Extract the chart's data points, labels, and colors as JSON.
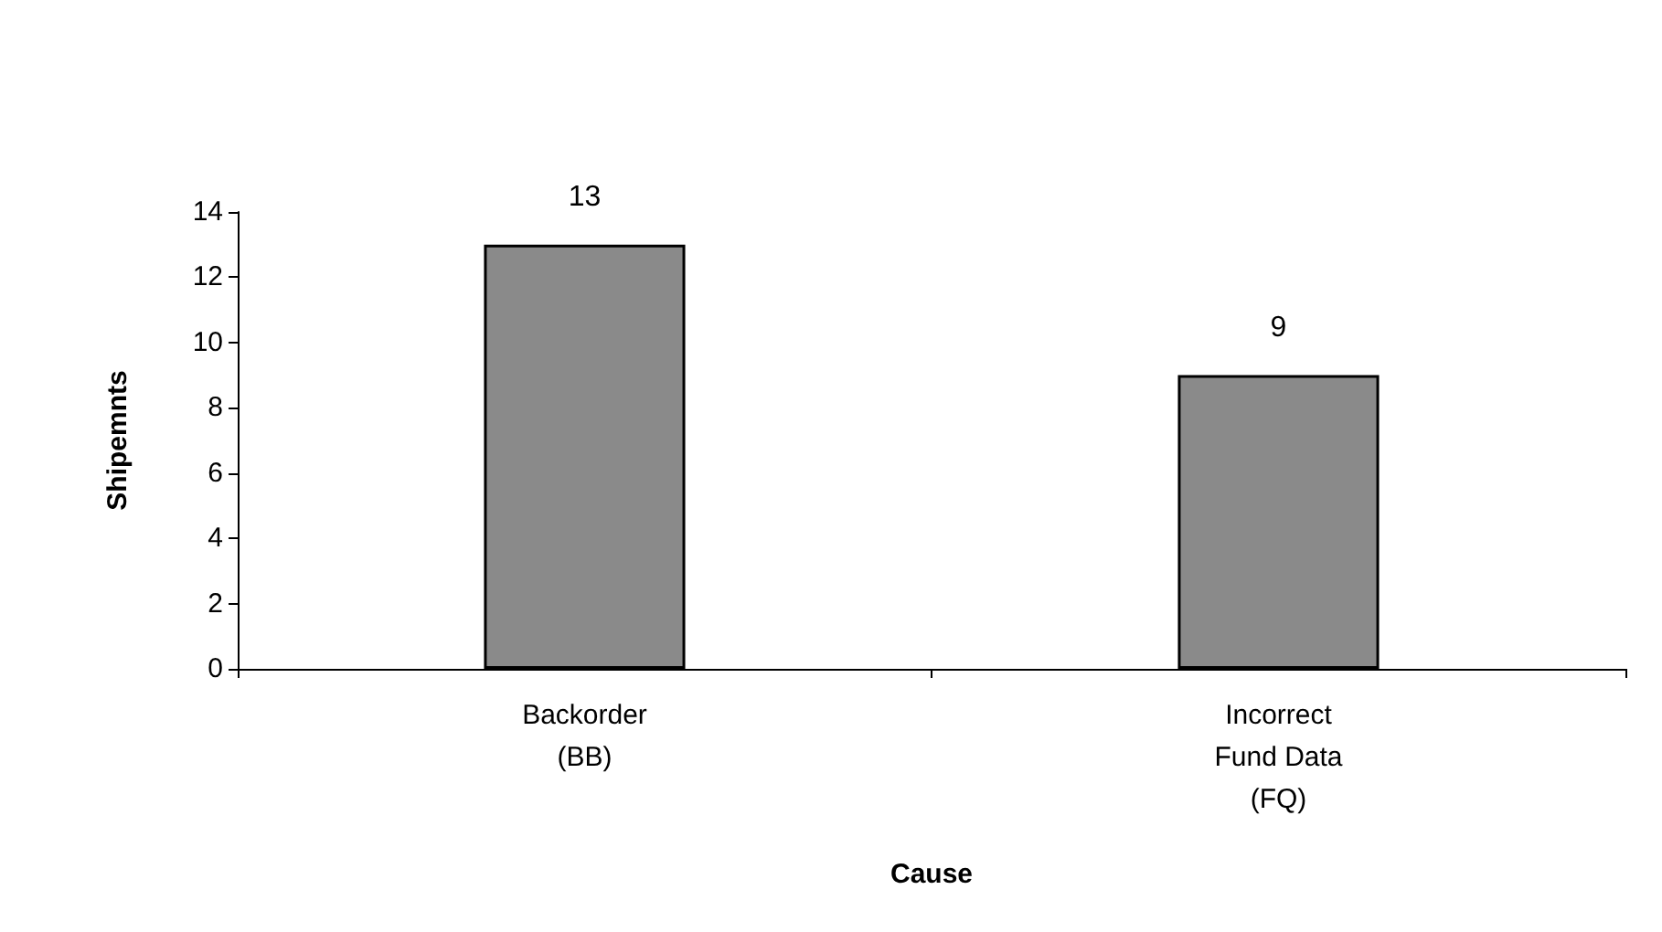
{
  "chart_data": {
    "type": "bar",
    "xlabel": "Cause",
    "ylabel": "Shipemnts",
    "categories": [
      "Backorder\n(BB)",
      "Incorrect\nFund Data\n(FQ)"
    ],
    "values": [
      13,
      9
    ],
    "color": "#8a8a8a",
    "ylim": [
      0,
      14
    ],
    "yticks": [
      0,
      2,
      4,
      6,
      8,
      10,
      12,
      14
    ],
    "grid": false,
    "data_labels": true
  }
}
